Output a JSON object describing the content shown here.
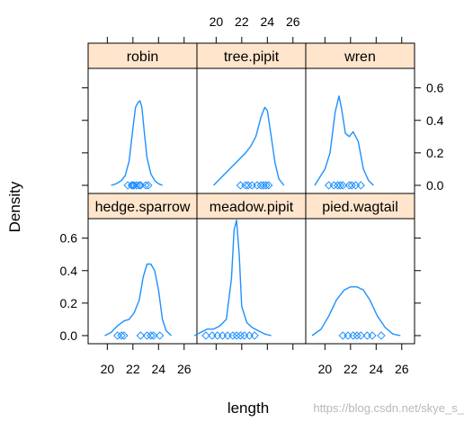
{
  "chart_data": {
    "type": "line",
    "xlabel": "length",
    "ylabel": "Density",
    "xlim": [
      18.5,
      27
    ],
    "ylim": [
      -0.05,
      0.72
    ],
    "x_ticks": [
      20,
      22,
      24,
      26
    ],
    "y_ticks": [
      0.0,
      0.2,
      0.4,
      0.6
    ],
    "y_tick_labels": [
      "0.0",
      "0.2",
      "0.4",
      "0.6"
    ],
    "colors": {
      "line": "#1E90FF",
      "strip_fill": "#FFE5CC",
      "frame": "#000000"
    },
    "panels": [
      {
        "name": "robin",
        "density": {
          "x": [
            20.3,
            20.7,
            21.1,
            21.4,
            21.7,
            22.0,
            22.2,
            22.4,
            22.55,
            22.7,
            22.9,
            23.1,
            23.4,
            23.7,
            24.0,
            24.3
          ],
          "y": [
            0.0,
            0.01,
            0.03,
            0.06,
            0.15,
            0.35,
            0.48,
            0.51,
            0.52,
            0.48,
            0.32,
            0.17,
            0.07,
            0.03,
            0.01,
            0.0
          ]
        },
        "rug": [
          21.6,
          21.9,
          22.0,
          22.1,
          22.3,
          22.5,
          22.6,
          23.0,
          23.2
        ]
      },
      {
        "name": "tree.pipit",
        "density": {
          "x": [
            19.8,
            20.3,
            20.8,
            21.3,
            21.8,
            22.3,
            22.7,
            23.1,
            23.5,
            23.8,
            24.0,
            24.3,
            24.6,
            24.9,
            25.3
          ],
          "y": [
            0.0,
            0.04,
            0.08,
            0.12,
            0.16,
            0.2,
            0.24,
            0.3,
            0.42,
            0.48,
            0.46,
            0.3,
            0.14,
            0.04,
            0.0
          ]
        },
        "rug": [
          21.9,
          22.3,
          22.5,
          22.8,
          23.2,
          23.5,
          23.7,
          23.9,
          24.1
        ]
      },
      {
        "name": "wren",
        "density": {
          "x": [
            19.2,
            19.6,
            20.0,
            20.4,
            20.8,
            21.1,
            21.3,
            21.6,
            21.9,
            22.2,
            22.6,
            23.0,
            23.4,
            23.8
          ],
          "y": [
            0.0,
            0.05,
            0.1,
            0.2,
            0.45,
            0.55,
            0.47,
            0.32,
            0.3,
            0.33,
            0.27,
            0.1,
            0.03,
            0.0
          ]
        },
        "rug": [
          20.3,
          20.7,
          21.0,
          21.2,
          21.4,
          21.9,
          22.1,
          22.4,
          22.8
        ]
      },
      {
        "name": "hedge.sparrow",
        "density": {
          "x": [
            19.8,
            20.3,
            20.8,
            21.3,
            21.7,
            22.1,
            22.5,
            22.8,
            23.1,
            23.4,
            23.7,
            24.0,
            24.3,
            24.6,
            25.0
          ],
          "y": [
            0.0,
            0.02,
            0.06,
            0.09,
            0.1,
            0.14,
            0.22,
            0.36,
            0.44,
            0.44,
            0.4,
            0.28,
            0.1,
            0.03,
            0.0
          ]
        },
        "rug": [
          20.8,
          21.1,
          21.3,
          22.6,
          23.1,
          23.4,
          23.6,
          24.1
        ]
      },
      {
        "name": "meadow.pipit",
        "density": {
          "x": [
            18.3,
            18.8,
            19.3,
            19.8,
            20.3,
            20.8,
            21.2,
            21.4,
            21.6,
            21.8,
            22.0,
            22.4,
            22.8,
            23.3,
            23.8,
            24.3
          ],
          "y": [
            0.0,
            0.02,
            0.04,
            0.04,
            0.06,
            0.1,
            0.35,
            0.65,
            0.71,
            0.5,
            0.18,
            0.08,
            0.05,
            0.03,
            0.01,
            0.0
          ]
        },
        "rug": [
          19.2,
          19.7,
          20.1,
          20.5,
          20.9,
          21.3,
          21.6,
          21.9,
          22.2,
          22.6,
          23.0
        ]
      },
      {
        "name": "pied.wagtail",
        "density": {
          "x": [
            19.0,
            19.7,
            20.3,
            20.9,
            21.5,
            22.0,
            22.5,
            23.0,
            23.5,
            24.1,
            24.7,
            25.3,
            25.9
          ],
          "y": [
            0.0,
            0.04,
            0.12,
            0.22,
            0.28,
            0.3,
            0.3,
            0.28,
            0.22,
            0.12,
            0.05,
            0.01,
            0.0
          ]
        },
        "rug": [
          21.4,
          21.8,
          22.2,
          22.5,
          22.8,
          23.3,
          23.7,
          24.4
        ]
      }
    ]
  },
  "watermark": "https://blog.csdn.net/skye_s_"
}
